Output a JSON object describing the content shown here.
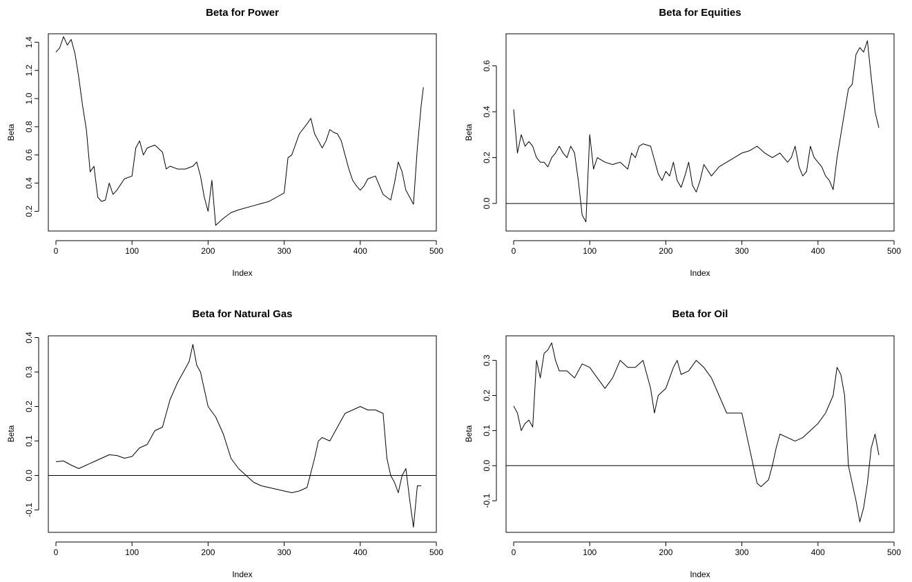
{
  "chart_data": [
    {
      "type": "line",
      "title": "Beta for Power",
      "xlabel": "Index",
      "ylabel": "Beta",
      "xlim": [
        -10,
        500
      ],
      "ylim": [
        0.06,
        1.46
      ],
      "xticks": [
        0,
        100,
        200,
        300,
        400,
        500
      ],
      "yticks": [
        0.2,
        0.4,
        0.6,
        0.8,
        1.0,
        1.2,
        1.4
      ],
      "ytick_labels": [
        "0.2",
        "0.4",
        "0.6",
        "0.8",
        "1.0",
        "1.2",
        "1.4"
      ],
      "zero_line": false,
      "series": [
        {
          "x": [
            0,
            5,
            10,
            15,
            20,
            25,
            30,
            35,
            40,
            45,
            50,
            55,
            60,
            65,
            70,
            75,
            80,
            90,
            100,
            105,
            110,
            115,
            120,
            130,
            140,
            145,
            150,
            160,
            170,
            180,
            185,
            190,
            195,
            200,
            205,
            210,
            220,
            230,
            240,
            260,
            280,
            290,
            300,
            305,
            310,
            320,
            330,
            335,
            340,
            345,
            350,
            355,
            360,
            365,
            370,
            375,
            380,
            385,
            390,
            395,
            400,
            405,
            410,
            420,
            430,
            440,
            445,
            450,
            455,
            460,
            465,
            470,
            475,
            480,
            483
          ],
          "y": [
            1.33,
            1.36,
            1.44,
            1.38,
            1.42,
            1.32,
            1.15,
            0.95,
            0.78,
            0.48,
            0.52,
            0.3,
            0.27,
            0.28,
            0.4,
            0.32,
            0.35,
            0.43,
            0.45,
            0.65,
            0.7,
            0.6,
            0.65,
            0.67,
            0.62,
            0.5,
            0.52,
            0.5,
            0.5,
            0.52,
            0.55,
            0.45,
            0.3,
            0.2,
            0.42,
            0.1,
            0.15,
            0.19,
            0.21,
            0.24,
            0.27,
            0.3,
            0.33,
            0.58,
            0.6,
            0.75,
            0.82,
            0.86,
            0.75,
            0.7,
            0.65,
            0.7,
            0.78,
            0.76,
            0.75,
            0.7,
            0.6,
            0.5,
            0.42,
            0.38,
            0.35,
            0.38,
            0.43,
            0.45,
            0.32,
            0.28,
            0.4,
            0.55,
            0.48,
            0.35,
            0.3,
            0.25,
            0.65,
            0.95,
            1.08
          ]
        }
      ]
    },
    {
      "type": "line",
      "title": "Beta for Equities",
      "xlabel": "Index",
      "ylabel": "Beta",
      "xlim": [
        -10,
        500
      ],
      "ylim": [
        -0.12,
        0.74
      ],
      "xticks": [
        0,
        100,
        200,
        300,
        400,
        500
      ],
      "yticks": [
        0.0,
        0.2,
        0.4,
        0.6
      ],
      "ytick_labels": [
        "0.0",
        "0.2",
        "0.4",
        "0.6"
      ],
      "zero_line": true,
      "series": [
        {
          "x": [
            0,
            5,
            10,
            15,
            20,
            25,
            30,
            35,
            40,
            45,
            50,
            55,
            60,
            65,
            70,
            75,
            80,
            85,
            90,
            95,
            100,
            105,
            110,
            120,
            130,
            140,
            150,
            155,
            160,
            165,
            170,
            180,
            185,
            190,
            195,
            200,
            205,
            210,
            215,
            220,
            225,
            230,
            235,
            240,
            245,
            250,
            260,
            270,
            280,
            290,
            300,
            310,
            320,
            330,
            340,
            350,
            360,
            365,
            370,
            375,
            380,
            385,
            390,
            395,
            400,
            405,
            410,
            415,
            420,
            425,
            430,
            435,
            440,
            445,
            450,
            455,
            460,
            465,
            470,
            475,
            480
          ],
          "y": [
            0.41,
            0.22,
            0.3,
            0.25,
            0.27,
            0.25,
            0.2,
            0.18,
            0.18,
            0.16,
            0.2,
            0.22,
            0.25,
            0.22,
            0.2,
            0.25,
            0.22,
            0.1,
            -0.05,
            -0.08,
            0.3,
            0.15,
            0.2,
            0.18,
            0.17,
            0.18,
            0.15,
            0.22,
            0.2,
            0.25,
            0.26,
            0.25,
            0.19,
            0.13,
            0.1,
            0.14,
            0.12,
            0.18,
            0.1,
            0.07,
            0.12,
            0.18,
            0.08,
            0.05,
            0.1,
            0.17,
            0.12,
            0.16,
            0.18,
            0.2,
            0.22,
            0.23,
            0.25,
            0.22,
            0.2,
            0.22,
            0.18,
            0.2,
            0.25,
            0.16,
            0.12,
            0.14,
            0.25,
            0.2,
            0.18,
            0.16,
            0.12,
            0.1,
            0.06,
            0.2,
            0.3,
            0.4,
            0.5,
            0.52,
            0.65,
            0.68,
            0.66,
            0.71,
            0.55,
            0.4,
            0.33
          ]
        }
      ]
    },
    {
      "type": "line",
      "title": "Beta for Natural Gas",
      "xlabel": "Index",
      "ylabel": "Beta",
      "xlim": [
        -10,
        500
      ],
      "ylim": [
        -0.165,
        0.405
      ],
      "xticks": [
        0,
        100,
        200,
        300,
        400,
        500
      ],
      "yticks": [
        -0.1,
        0.0,
        0.1,
        0.2,
        0.3,
        0.4
      ],
      "ytick_labels": [
        "-0.1",
        "0.0",
        "0.1",
        "0.2",
        "0.3",
        "0.4"
      ],
      "zero_line": true,
      "series": [
        {
          "x": [
            0,
            10,
            20,
            30,
            40,
            50,
            60,
            70,
            80,
            90,
            100,
            110,
            120,
            130,
            140,
            150,
            160,
            170,
            175,
            180,
            185,
            190,
            200,
            210,
            220,
            230,
            240,
            250,
            260,
            270,
            280,
            290,
            300,
            310,
            320,
            330,
            340,
            345,
            350,
            360,
            370,
            380,
            390,
            400,
            410,
            420,
            430,
            435,
            440,
            445,
            450,
            455,
            460,
            465,
            470,
            475,
            480
          ],
          "y": [
            0.04,
            0.042,
            0.03,
            0.02,
            0.03,
            0.04,
            0.05,
            0.06,
            0.058,
            0.05,
            0.055,
            0.08,
            0.09,
            0.13,
            0.14,
            0.22,
            0.27,
            0.31,
            0.33,
            0.38,
            0.32,
            0.3,
            0.2,
            0.17,
            0.12,
            0.05,
            0.02,
            0.0,
            -0.02,
            -0.03,
            -0.035,
            -0.04,
            -0.045,
            -0.05,
            -0.045,
            -0.035,
            0.05,
            0.1,
            0.11,
            0.1,
            0.14,
            0.18,
            0.19,
            0.2,
            0.19,
            0.19,
            0.18,
            0.05,
            0.0,
            -0.02,
            -0.05,
            0.0,
            0.02,
            -0.07,
            -0.15,
            -0.03,
            -0.03
          ]
        }
      ]
    },
    {
      "type": "line",
      "title": "Beta for Oil",
      "xlabel": "Index",
      "ylabel": "Beta",
      "xlim": [
        -10,
        500
      ],
      "ylim": [
        -0.19,
        0.37
      ],
      "xticks": [
        0,
        100,
        200,
        300,
        400,
        500
      ],
      "yticks": [
        -0.1,
        0.0,
        0.1,
        0.2,
        0.3
      ],
      "ytick_labels": [
        "-0.1",
        "0.0",
        "0.1",
        "0.2",
        "0.3"
      ],
      "zero_line": true,
      "series": [
        {
          "x": [
            0,
            5,
            10,
            15,
            20,
            25,
            30,
            35,
            40,
            45,
            50,
            55,
            60,
            70,
            80,
            90,
            100,
            110,
            120,
            130,
            140,
            150,
            160,
            170,
            180,
            185,
            190,
            200,
            210,
            215,
            220,
            230,
            240,
            250,
            260,
            270,
            280,
            290,
            300,
            305,
            310,
            315,
            320,
            325,
            330,
            335,
            340,
            345,
            350,
            360,
            370,
            380,
            390,
            400,
            410,
            420,
            425,
            430,
            435,
            440,
            445,
            450,
            455,
            460,
            465,
            470,
            475,
            480
          ],
          "y": [
            0.17,
            0.15,
            0.1,
            0.12,
            0.13,
            0.11,
            0.3,
            0.25,
            0.32,
            0.33,
            0.35,
            0.3,
            0.27,
            0.27,
            0.25,
            0.29,
            0.28,
            0.25,
            0.22,
            0.25,
            0.3,
            0.28,
            0.28,
            0.3,
            0.22,
            0.15,
            0.2,
            0.22,
            0.28,
            0.3,
            0.26,
            0.27,
            0.3,
            0.28,
            0.25,
            0.2,
            0.15,
            0.15,
            0.15,
            0.1,
            0.05,
            0.0,
            -0.05,
            -0.06,
            -0.05,
            -0.04,
            0.0,
            0.05,
            0.09,
            0.08,
            0.07,
            0.08,
            0.1,
            0.12,
            0.15,
            0.2,
            0.28,
            0.26,
            0.2,
            0.0,
            -0.05,
            -0.1,
            -0.16,
            -0.12,
            -0.05,
            0.05,
            0.09,
            0.03
          ]
        }
      ]
    }
  ]
}
